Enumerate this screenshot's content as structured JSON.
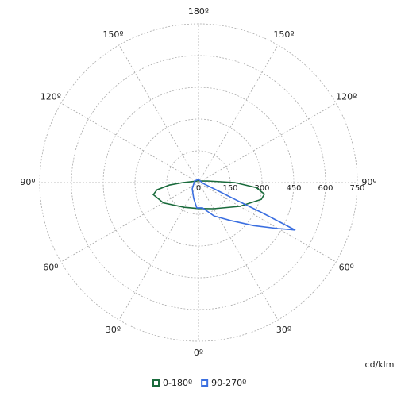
{
  "chart_data": {
    "type": "polar",
    "unit_label": "cd/klm",
    "xlim": [
      -180,
      180
    ],
    "xticks": [
      {
        "value": -150,
        "label": "150º"
      },
      {
        "value": -120,
        "label": "120º"
      },
      {
        "value": -90,
        "label": "90º"
      },
      {
        "value": -60,
        "label": "60º"
      },
      {
        "value": -30,
        "label": "30º"
      },
      {
        "value": 0,
        "label": "0º"
      },
      {
        "value": 30,
        "label": "30º"
      },
      {
        "value": 60,
        "label": "60º"
      },
      {
        "value": 90,
        "label": "90º"
      },
      {
        "value": 120,
        "label": "120º"
      },
      {
        "value": 150,
        "label": "150º"
      },
      {
        "value": 180,
        "label": "180º"
      }
    ],
    "ylim": [
      0,
      750
    ],
    "yticks": [
      0,
      150,
      300,
      450,
      600,
      750
    ],
    "grid": true,
    "legend": "bottom",
    "series": [
      {
        "name": "0-180º",
        "color": "#1a6b3c",
        "x": [
          -180,
          -150,
          -120,
          -100,
          -90,
          -85,
          -80,
          -75,
          -60,
          -30,
          0,
          30,
          60,
          75,
          80,
          85,
          90,
          100,
          120,
          150,
          180
        ],
        "values": [
          10,
          10,
          12,
          27,
          73,
          139,
          199,
          221,
          192,
          135,
          123,
          143,
          225,
          307,
          316,
          274,
          171,
          43,
          14,
          10,
          10
        ]
      },
      {
        "name": "90-270º",
        "color": "#3b6fe0",
        "x": [
          -180,
          -112,
          -45,
          -17,
          -4,
          9,
          25,
          40,
          52,
          59.9,
          63,
          63.8,
          64.6,
          65,
          68,
          75,
          90,
          120,
          180
        ],
        "values": [
          15,
          20,
          42,
          78,
          120,
          121,
          174,
          234,
          331,
          434,
          490,
          510,
          332,
          206,
          81,
          30,
          15,
          12,
          15
        ]
      }
    ]
  }
}
